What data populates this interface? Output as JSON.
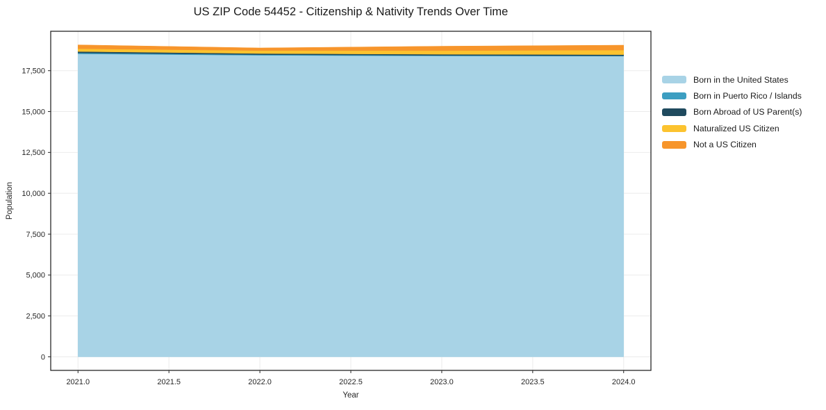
{
  "chart_data": {
    "type": "area",
    "stacked": true,
    "title": "US ZIP Code 54452 - Citizenship & Nativity Trends Over Time",
    "xlabel": "Year",
    "ylabel": "Population",
    "x": [
      2021,
      2022,
      2023,
      2024
    ],
    "series": [
      {
        "name": "Born in the United States",
        "color": "#A8D3E6",
        "values": [
          18530,
          18440,
          18400,
          18390
        ]
      },
      {
        "name": "Born in Puerto Rico / Islands",
        "color": "#3C9EC1",
        "values": [
          60,
          40,
          30,
          20
        ]
      },
      {
        "name": "Born Abroad of US Parent(s)",
        "color": "#1F4A5E",
        "values": [
          85,
          70,
          75,
          70
        ]
      },
      {
        "name": "Naturalized US Citizen",
        "color": "#FCC32F",
        "values": [
          170,
          180,
          220,
          280
        ]
      },
      {
        "name": "Not a US Citizen",
        "color": "#F7952B",
        "values": [
          230,
          160,
          270,
          300
        ]
      }
    ],
    "xlim": [
      2020.85,
      2024.15
    ],
    "ylim": [
      -830,
      19910
    ],
    "x_ticks": [
      {
        "v": 2021.0,
        "label": "2021.0"
      },
      {
        "v": 2021.5,
        "label": "2021.5"
      },
      {
        "v": 2022.0,
        "label": "2022.0"
      },
      {
        "v": 2022.5,
        "label": "2022.5"
      },
      {
        "v": 2023.0,
        "label": "2023.0"
      },
      {
        "v": 2023.5,
        "label": "2023.5"
      },
      {
        "v": 2024.0,
        "label": "2024.0"
      }
    ],
    "y_ticks": [
      {
        "v": 0,
        "label": "0"
      },
      {
        "v": 2500,
        "label": "2,500"
      },
      {
        "v": 5000,
        "label": "5,000"
      },
      {
        "v": 7500,
        "label": "7,500"
      },
      {
        "v": 10000,
        "label": "10,000"
      },
      {
        "v": 12500,
        "label": "12,500"
      },
      {
        "v": 15000,
        "label": "15,000"
      },
      {
        "v": 17500,
        "label": "17,500"
      }
    ],
    "grid": true,
    "grid_color": "#EBEBEB",
    "frame_color": "#262626",
    "legend_position": "right outside"
  }
}
